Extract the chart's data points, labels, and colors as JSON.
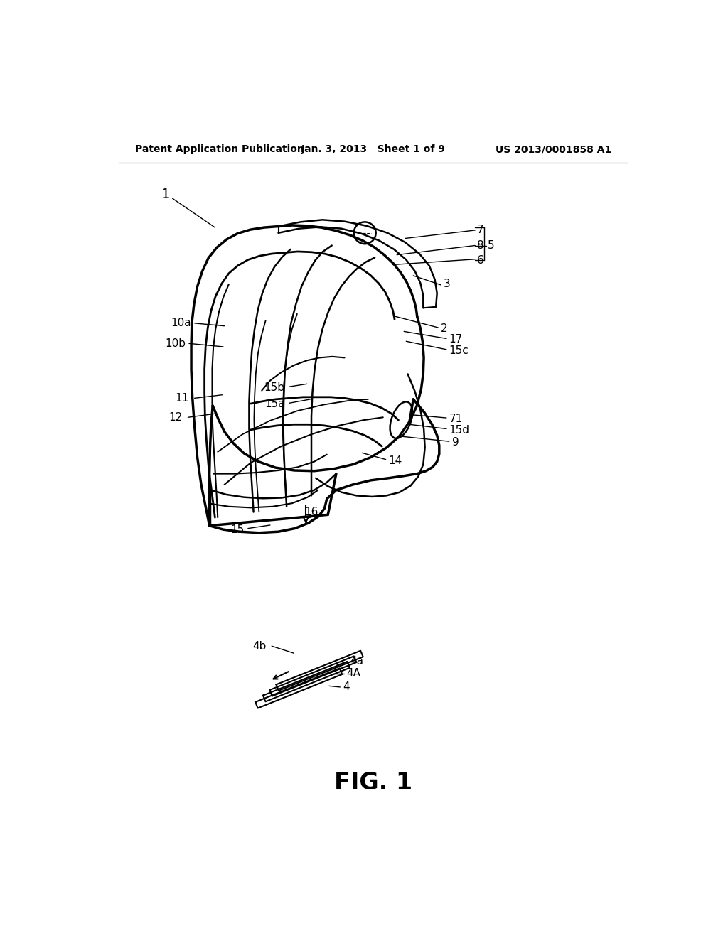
{
  "background_color": "#ffffff",
  "header_left": "Patent Application Publication",
  "header_center": "Jan. 3, 2013   Sheet 1 of 9",
  "header_right": "US 2013/0001858 A1",
  "figure_label": "FIG. 1"
}
